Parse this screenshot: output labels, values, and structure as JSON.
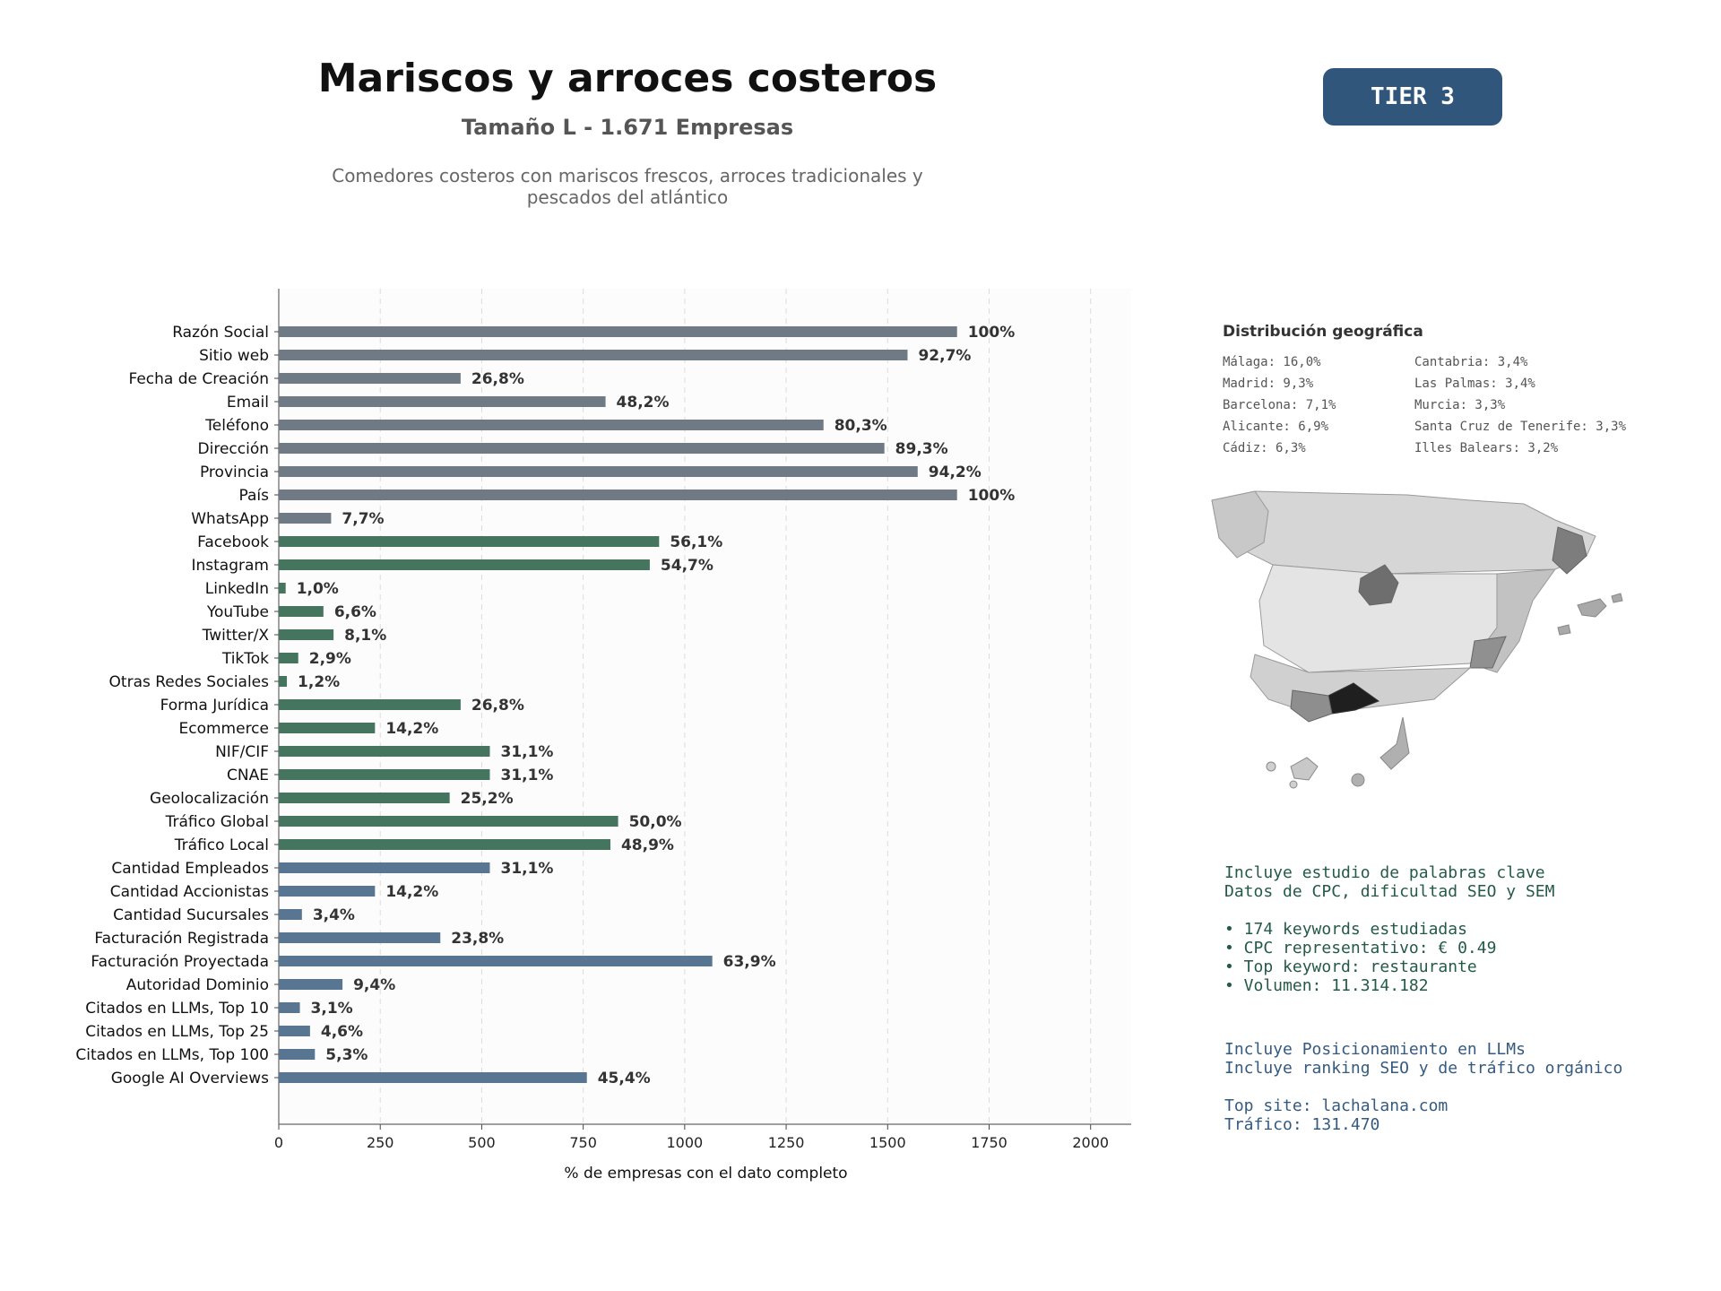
{
  "header": {
    "title": "Mariscos y arroces costeros",
    "subtitle": "Tamaño L - 1.671 Empresas",
    "description": "Comedores costeros con mariscos frescos, arroces tradicionales y pescados del atlántico",
    "tier": "TIER 3"
  },
  "chart_data": {
    "type": "bar",
    "orientation": "horizontal",
    "xlabel": "% de empresas con el dato completo",
    "ylabel": "",
    "xlim": [
      0,
      2100
    ],
    "xticks": [
      0,
      250,
      500,
      750,
      1000,
      1250,
      1500,
      1750,
      2000
    ],
    "grid": "vertical dashed",
    "categories": [
      "Razón Social",
      "Sitio web",
      "Fecha de Creación",
      "Email",
      "Teléfono",
      "Dirección",
      "Provincia",
      "País",
      "WhatsApp",
      "Facebook",
      "Instagram",
      "LinkedIn",
      "YouTube",
      "Twitter/X",
      "TikTok",
      "Otras Redes Sociales",
      "Forma Jurídica",
      "Ecommerce",
      "NIF/CIF",
      "CNAE",
      "Geolocalización",
      "Tráfico Global",
      "Tráfico Local",
      "Cantidad Empleados",
      "Cantidad Accionistas",
      "Cantidad Sucursales",
      "Facturación Registrada",
      "Facturación Proyectada",
      "Autoridad Dominio",
      "Citados en LLMs, Top 10",
      "Citados en LLMs, Top 25",
      "Citados en LLMs, Top 100",
      "Google AI Overviews"
    ],
    "values": [
      1671,
      1549,
      448,
      805,
      1342,
      1492,
      1574,
      1671,
      129,
      937,
      914,
      17,
      110,
      135,
      48,
      20,
      448,
      237,
      520,
      520,
      421,
      836,
      817,
      520,
      237,
      57,
      398,
      1068,
      157,
      52,
      77,
      89,
      759
    ],
    "labels": [
      "100%",
      "92,7%",
      "26,8%",
      "48,2%",
      "80,3%",
      "89,3%",
      "94,2%",
      "100%",
      "7,7%",
      "56,1%",
      "54,7%",
      "1,0%",
      "6,6%",
      "8,1%",
      "2,9%",
      "1,2%",
      "26,8%",
      "14,2%",
      "31,1%",
      "31,1%",
      "25,2%",
      "50,0%",
      "48,9%",
      "31,1%",
      "14,2%",
      "3,4%",
      "23,8%",
      "63,9%",
      "9,4%",
      "3,1%",
      "4,6%",
      "5,3%",
      "45,4%"
    ],
    "groups": [
      "basic",
      "basic",
      "basic",
      "basic",
      "basic",
      "basic",
      "basic",
      "basic",
      "basic",
      "digital",
      "digital",
      "digital",
      "digital",
      "digital",
      "digital",
      "digital",
      "digital",
      "digital",
      "digital",
      "digital",
      "digital",
      "digital",
      "digital",
      "business",
      "business",
      "business",
      "business",
      "business",
      "business",
      "business",
      "business",
      "business",
      "business"
    ],
    "colors": {
      "basic": "#6f7a84",
      "digital": "#45745f",
      "business": "#587591"
    }
  },
  "geo": {
    "title": "Distribución geográfica",
    "left": [
      "Málaga: 16,0%",
      "Madrid: 9,3%",
      "Barcelona: 7,1%",
      "Alicante: 6,9%",
      "Cádiz: 6,3%"
    ],
    "right": [
      "Cantabria: 3,4%",
      "Las Palmas: 3,4%",
      "Murcia: 3,3%",
      "Santa Cruz de Tenerife: 3,3%",
      "Illes Balears: 3,2%"
    ]
  },
  "keywords": {
    "line1": "Incluye estudio de palabras clave",
    "line2": "Datos de CPC, dificultad SEO y SEM",
    "b1": "• 174 keywords estudiadas",
    "b2": "• CPC representativo: € 0.49",
    "b3": "• Top keyword: restaurante",
    "b4": "• Volumen: 11.314.182"
  },
  "llm": {
    "line1": "Incluye Posicionamiento en LLMs",
    "line2": "Incluye ranking SEO y de tráfico orgánico",
    "site": "Top site: lachalana.com",
    "traffic": "Tráfico: 131.470"
  },
  "colors": {
    "accent": "#30567c",
    "keyword_text": "#245a4a",
    "llm_text": "#355a80"
  }
}
